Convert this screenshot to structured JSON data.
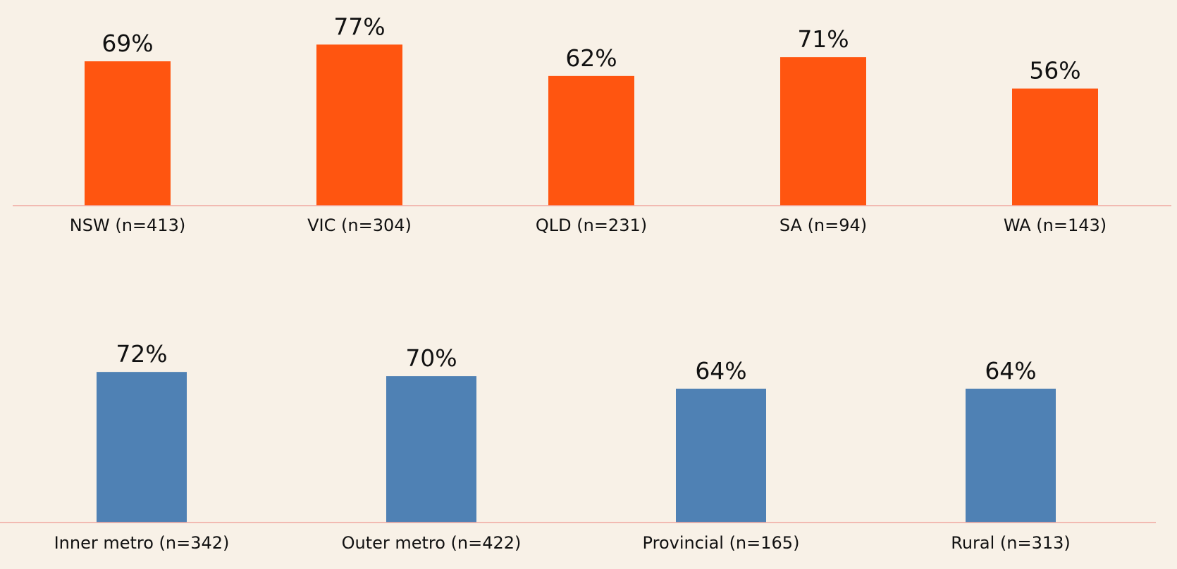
{
  "chart_data": [
    {
      "type": "bar",
      "color": "#ff5510",
      "ylim": [
        0,
        100
      ],
      "categories": [
        "NSW (n=413)",
        "VIC (n=304)",
        "QLD (n=231)",
        "SA (n=94)",
        "WA (n=143)"
      ],
      "values": [
        69,
        77,
        62,
        71,
        56
      ],
      "value_labels": [
        "69%",
        "77%",
        "62%",
        "71%",
        "56%"
      ]
    },
    {
      "type": "bar",
      "color": "#4f81b4",
      "ylim": [
        0,
        100
      ],
      "categories": [
        "Inner metro (n=342)",
        "Outer metro (n=422)",
        "Provincial (n=165)",
        "Rural (n=313)"
      ],
      "values": [
        72,
        70,
        64,
        64
      ],
      "value_labels": [
        "72%",
        "70%",
        "64%",
        "64%"
      ]
    }
  ]
}
